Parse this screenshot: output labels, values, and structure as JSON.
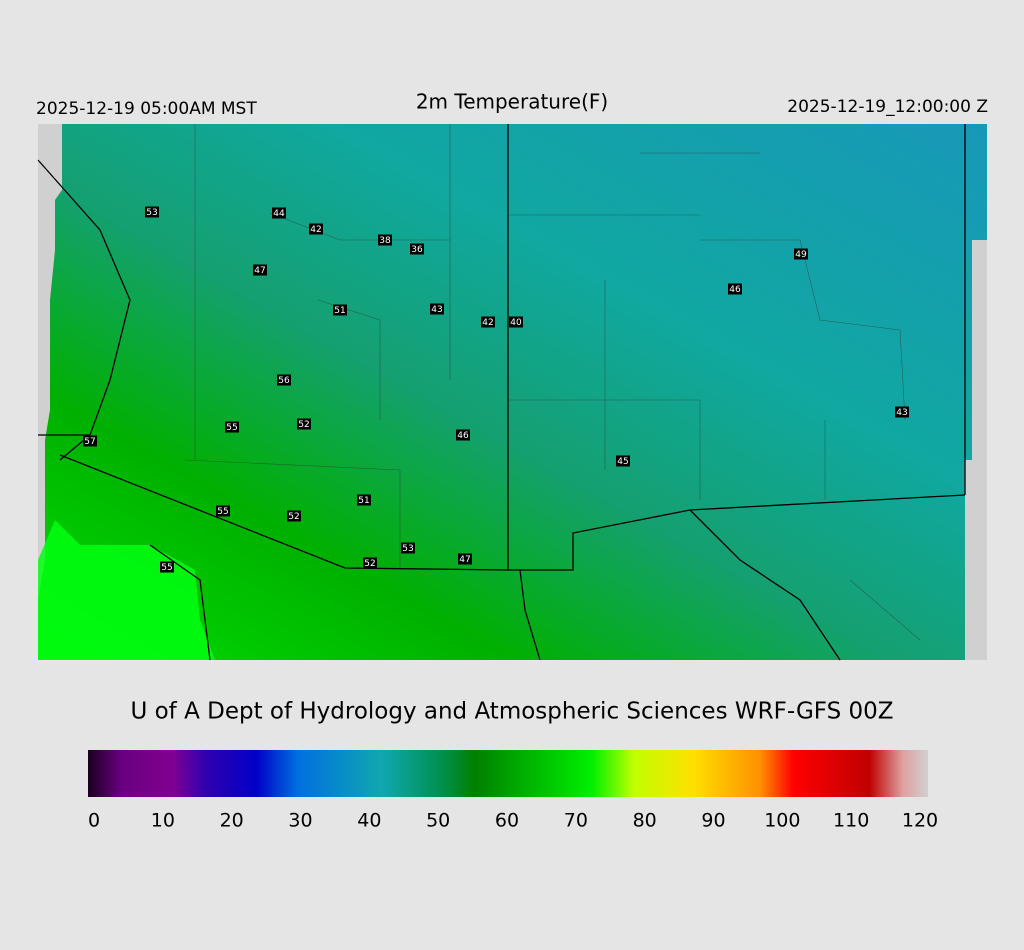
{
  "header": {
    "left": "2025-12-19 05:00AM MST",
    "title": "2m Temperature(F)",
    "right": "2025-12-19_12:00:00 Z"
  },
  "stations": [
    53,
    44,
    42,
    38,
    36,
    47,
    51,
    43,
    42,
    40,
    49,
    46,
    56,
    55,
    52,
    46,
    57,
    45,
    43,
    51,
    55,
    52,
    53,
    47,
    52,
    55
  ],
  "credit": "U of A Dept of Hydrology and Atmospheric Sciences WRF-GFS 00Z",
  "colorbar": {
    "ticks": [
      0,
      10,
      20,
      30,
      40,
      50,
      60,
      70,
      80,
      90,
      100,
      110,
      120
    ]
  }
}
